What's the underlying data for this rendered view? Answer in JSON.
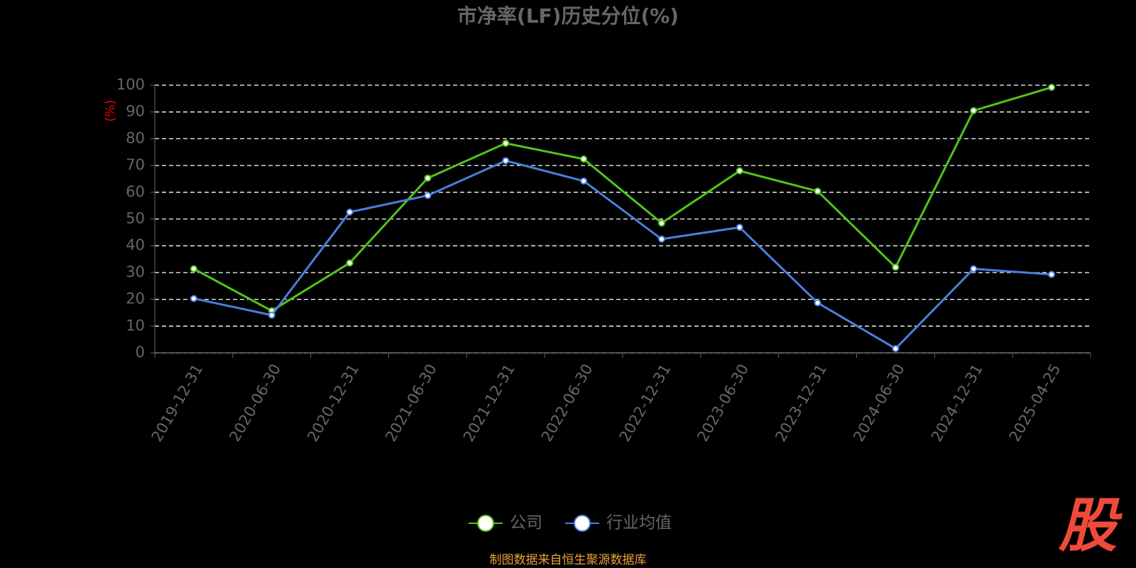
{
  "chart_data": {
    "type": "line",
    "title": "市净率(LF)历史分位(%)",
    "y_label": "(%)",
    "categories": [
      "2019-12-31",
      "2020-06-30",
      "2020-12-31",
      "2021-06-30",
      "2021-12-31",
      "2022-06-30",
      "2022-12-31",
      "2023-06-30",
      "2023-12-31",
      "2024-06-30",
      "2024-12-31",
      "2025-04-25"
    ],
    "series": [
      {
        "name": "公司",
        "color": "#52c41a",
        "values": [
          31.4,
          15.7,
          33.6,
          65.3,
          78.3,
          72.4,
          48.5,
          68.0,
          60.4,
          32.0,
          90.5,
          99.2
        ]
      },
      {
        "name": "行业均值",
        "color": "#4a7fdc",
        "values": [
          20.3,
          14.1,
          52.6,
          58.8,
          71.8,
          64.2,
          42.5,
          46.9,
          18.7,
          1.6,
          31.4,
          29.3
        ]
      }
    ],
    "ylim": [
      0,
      100
    ],
    "yticks": [
      0,
      10,
      20,
      30,
      40,
      50,
      60,
      70,
      80,
      90,
      100
    ],
    "grid": true,
    "source": "制图数据来自恒生聚源数据库",
    "watermark": "股"
  }
}
